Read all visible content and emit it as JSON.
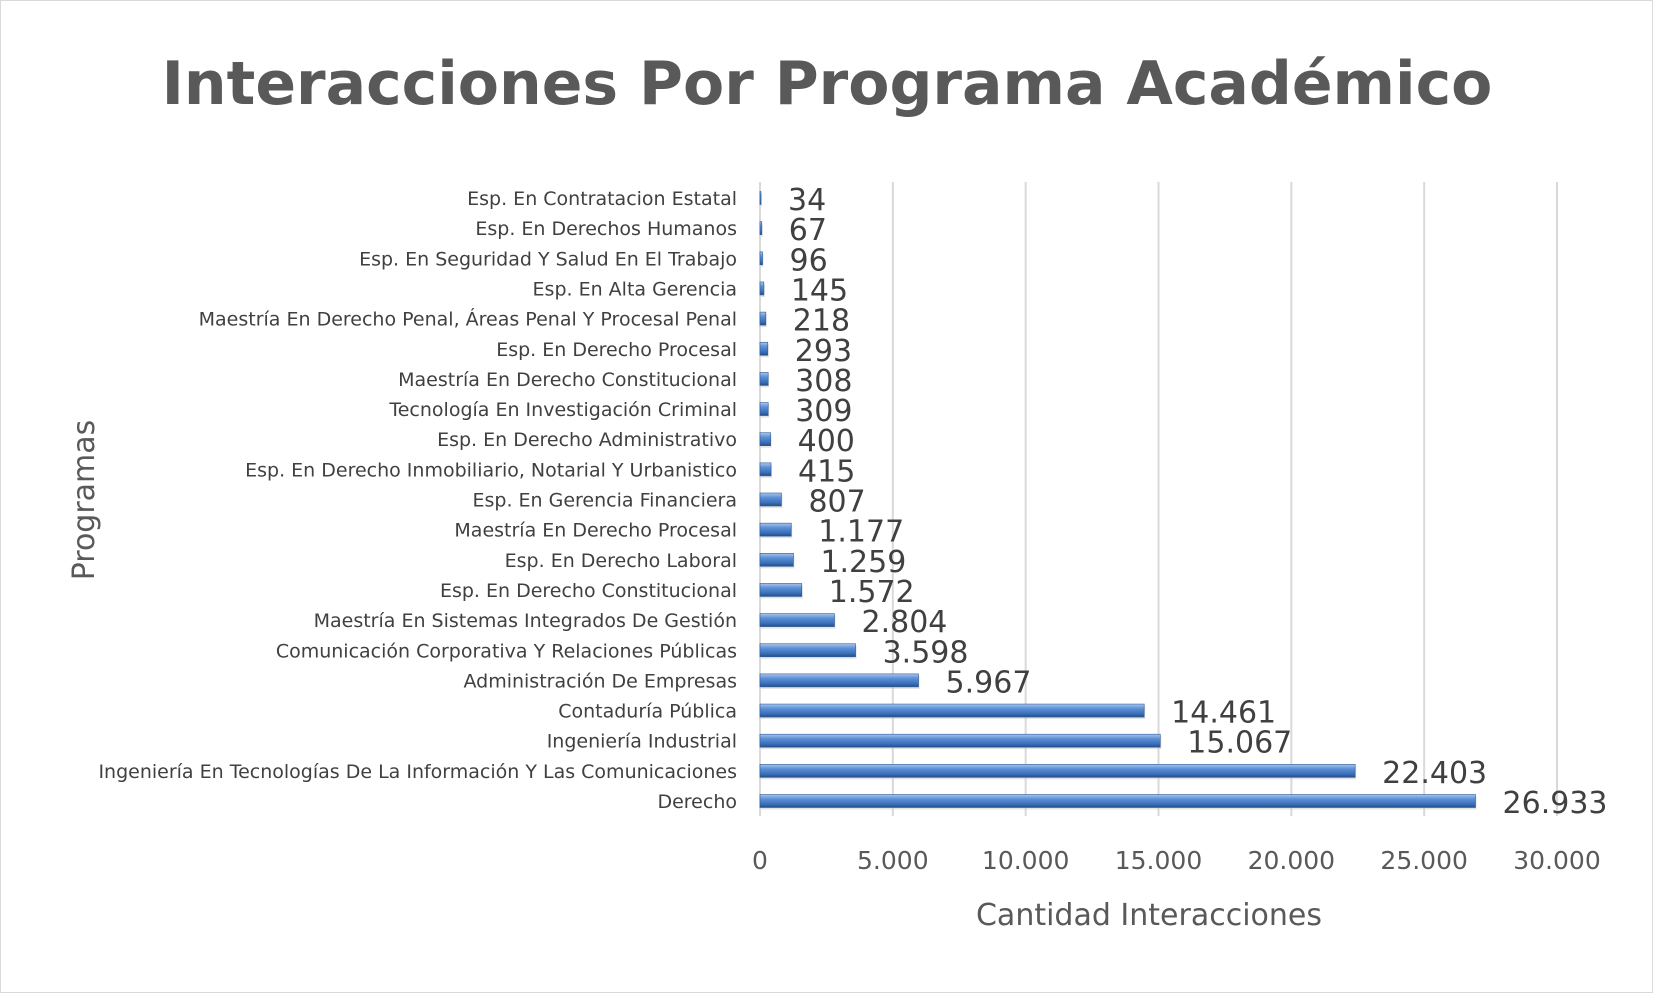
{
  "chart_data": {
    "type": "bar",
    "orientation": "horizontal",
    "title": "Interacciones Por Programa Académico",
    "xlabel": "Cantidad Interacciones",
    "ylabel": "Programas",
    "xlim": [
      0,
      30000
    ],
    "x_ticks": [
      0,
      5000,
      10000,
      15000,
      20000,
      25000,
      30000
    ],
    "x_tick_labels": [
      "0",
      "5.000",
      "10.000",
      "15.000",
      "20.000",
      "25.000",
      "30.000"
    ],
    "grid": "vertical",
    "legend": "none",
    "bar_color": "#4a7ebb",
    "categories": [
      "Esp. En Contratacion Estatal",
      "Esp. En Derechos Humanos",
      "Esp. En Seguridad Y Salud En El Trabajo",
      "Esp. En Alta Gerencia",
      "Maestría En Derecho Penal, Áreas Penal Y Procesal Penal",
      "Esp. En Derecho Procesal",
      "Maestría En Derecho Constitucional",
      "Tecnología En Investigación Criminal",
      "Esp. En Derecho Administrativo",
      "Esp. En Derecho Inmobiliario, Notarial Y Urbanistico",
      "Esp. En Gerencia Financiera",
      "Maestría En Derecho Procesal",
      "Esp. En Derecho Laboral",
      "Esp. En Derecho Constitucional",
      "Maestría En Sistemas Integrados De Gestión",
      "Comunicación Corporativa Y Relaciones Públicas",
      "Administración De Empresas",
      "Contaduría Pública",
      "Ingeniería Industrial",
      "Ingeniería En Tecnologías De La Información Y Las Comunicaciones",
      "Derecho"
    ],
    "values": [
      34,
      67,
      96,
      145,
      218,
      293,
      308,
      309,
      400,
      415,
      807,
      1177,
      1259,
      1572,
      2804,
      3598,
      5967,
      14461,
      15067,
      22403,
      26933
    ],
    "data_labels": [
      "34",
      "67",
      "96",
      "145",
      "218",
      "293",
      "308",
      "309",
      "400",
      "415",
      "807",
      "1.177",
      "1.259",
      "1.572",
      "2.804",
      "3.598",
      "5.967",
      "14.461",
      "15.067",
      "22.403",
      "26.933"
    ]
  }
}
